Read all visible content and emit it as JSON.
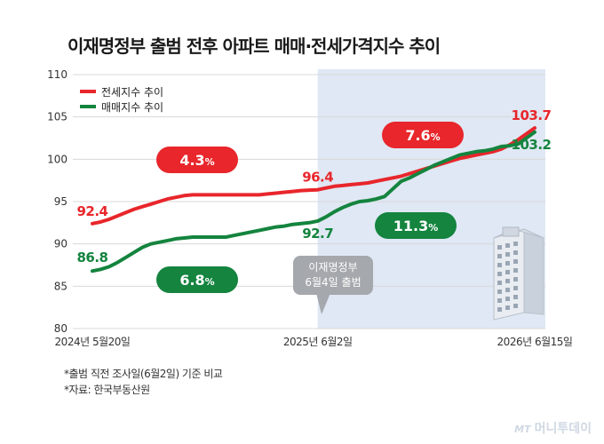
{
  "title": "이재명정부 출범 전후 아파트 매매·전세가격지수 추이",
  "colors": {
    "jeonse": "#e8262b",
    "maemae": "#14843e",
    "shade": "#dfe8f4",
    "grid": "#d8d8d8",
    "callout": "#a5a8ac"
  },
  "callout": {
    "line1": "이재명정부",
    "line2": "6월4일 출범"
  },
  "notes": [
    "*출범 직전 조사일(6월2일) 기준 비교",
    "*자료: 한국부동산원"
  ],
  "watermark": {
    "logo": "MT",
    "text": "머니투데이"
  },
  "chart_data": {
    "type": "line",
    "ylim": [
      80,
      110
    ],
    "yticks": [
      80,
      85,
      90,
      95,
      100,
      105,
      110
    ],
    "xlim": [
      0,
      106
    ],
    "xticks": [
      {
        "x": 0,
        "label": "2024년 5월20일"
      },
      {
        "x": 54,
        "label": "2025년 6월2일"
      },
      {
        "x": 106,
        "label": "2026년 6월15일"
      }
    ],
    "shade_from": 54,
    "series": [
      {
        "name": "전세지수 추이",
        "color": "#e8262b",
        "x": [
          0,
          2,
          4,
          6,
          8,
          10,
          12,
          14,
          16,
          18,
          20,
          22,
          24,
          26,
          28,
          30,
          32,
          34,
          36,
          38,
          40,
          42,
          44,
          46,
          48,
          50,
          52,
          54,
          56,
          58,
          60,
          62,
          64,
          66,
          68,
          70,
          72,
          74,
          76,
          78,
          80,
          82,
          84,
          86,
          88,
          90,
          92,
          94,
          96,
          98,
          100,
          102,
          104,
          106
        ],
        "values": [
          92.4,
          92.6,
          92.9,
          93.3,
          93.7,
          94.1,
          94.4,
          94.7,
          95.0,
          95.3,
          95.5,
          95.7,
          95.8,
          95.8,
          95.8,
          95.8,
          95.8,
          95.8,
          95.8,
          95.8,
          95.8,
          95.9,
          96.0,
          96.1,
          96.2,
          96.3,
          96.35,
          96.4,
          96.6,
          96.8,
          96.9,
          97.0,
          97.1,
          97.2,
          97.4,
          97.6,
          97.8,
          98.0,
          98.3,
          98.6,
          98.9,
          99.2,
          99.5,
          99.8,
          100.1,
          100.3,
          100.5,
          100.7,
          100.9,
          101.2,
          101.7,
          102.3,
          103.0,
          103.7
        ]
      },
      {
        "name": "매매지수 추이",
        "color": "#14843e",
        "x": [
          0,
          2,
          4,
          6,
          8,
          10,
          12,
          14,
          16,
          18,
          20,
          22,
          24,
          26,
          28,
          30,
          32,
          34,
          36,
          38,
          40,
          42,
          44,
          46,
          48,
          50,
          52,
          54,
          56,
          58,
          60,
          62,
          64,
          66,
          68,
          70,
          72,
          74,
          76,
          78,
          80,
          82,
          84,
          86,
          88,
          90,
          92,
          94,
          96,
          98,
          100,
          102,
          104,
          106
        ],
        "values": [
          86.8,
          87.0,
          87.3,
          87.8,
          88.4,
          89.0,
          89.6,
          90.0,
          90.2,
          90.4,
          90.6,
          90.7,
          90.8,
          90.8,
          90.8,
          90.8,
          90.8,
          91.0,
          91.2,
          91.4,
          91.6,
          91.8,
          92.0,
          92.1,
          92.3,
          92.4,
          92.5,
          92.7,
          93.2,
          93.8,
          94.3,
          94.7,
          95.0,
          95.1,
          95.3,
          95.6,
          96.5,
          97.4,
          97.8,
          98.3,
          98.8,
          99.3,
          99.7,
          100.1,
          100.5,
          100.7,
          100.9,
          101.0,
          101.2,
          101.5,
          101.6,
          101.8,
          102.5,
          103.2
        ]
      }
    ],
    "value_labels": [
      {
        "series": 0,
        "x": 0,
        "value": 92.4,
        "text": "92.4"
      },
      {
        "series": 0,
        "x": 54,
        "value": 96.4,
        "text": "96.4"
      },
      {
        "series": 0,
        "x": 106,
        "value": 103.7,
        "text": "103.7"
      },
      {
        "series": 1,
        "x": 0,
        "value": 86.8,
        "text": "86.8"
      },
      {
        "series": 1,
        "x": 54,
        "value": 92.7,
        "text": "92.7"
      },
      {
        "series": 1,
        "x": 106,
        "value": 103.2,
        "text": "103.2"
      }
    ],
    "change_badges": [
      {
        "series": 0,
        "value": "4.3",
        "unit": "%"
      },
      {
        "series": 0,
        "value": "7.6",
        "unit": "%"
      },
      {
        "series": 1,
        "value": "6.8",
        "unit": "%"
      },
      {
        "series": 1,
        "value": "11.3",
        "unit": "%"
      }
    ]
  }
}
